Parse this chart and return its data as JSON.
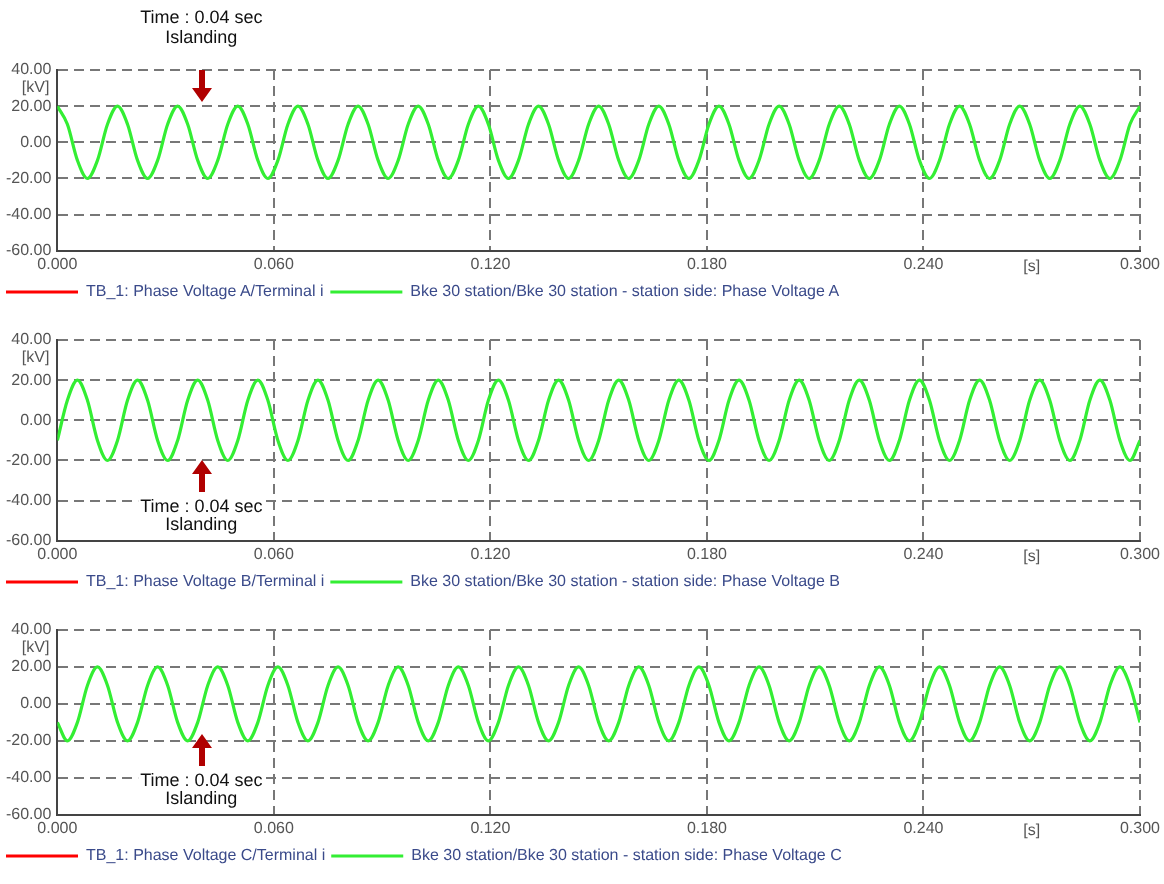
{
  "chart_data": [
    {
      "type": "line",
      "xlabel": "[s]",
      "ylabel": "[kV]",
      "legend": "bottom",
      "grid": true,
      "xlim": [
        0,
        0.3
      ],
      "ylim": [
        -60,
        40
      ],
      "xticks": [
        {
          "value": 0,
          "label": "0.000"
        },
        {
          "value": 0.06,
          "label": "0.060"
        },
        {
          "value": 0.12,
          "label": "0.120"
        },
        {
          "value": 0.18,
          "label": "0.180"
        },
        {
          "value": 0.24,
          "label": "0.240"
        },
        {
          "value": 0.3,
          "label": "0.300"
        }
      ],
      "yticks": [
        {
          "value": -60,
          "label": "-60.00"
        },
        {
          "value": -40,
          "label": "-40.00"
        },
        {
          "value": -20,
          "label": "-20.00"
        },
        {
          "value": 0,
          "label": "0.00"
        },
        {
          "value": 20,
          "label": "20.00"
        },
        {
          "value": 40,
          "label": "40.00"
        }
      ],
      "annotations": [
        "Time : 0.04 sec",
        "Islanding"
      ],
      "x": [
        0,
        0.00278,
        0.00556,
        0.00833,
        0.01111,
        0.01389,
        0.01667,
        0.01944,
        0.02222,
        0.025,
        0.02778,
        0.03056,
        0.03333,
        0.03611,
        0.03889,
        0.04167,
        0.04444,
        0.04722,
        0.05,
        0.05278,
        0.05556,
        0.05833,
        0.06111,
        0.06389,
        0.06667,
        0.06944,
        0.07222,
        0.075,
        0.07778,
        0.08056,
        0.08333,
        0.08611,
        0.08889,
        0.09167,
        0.09444,
        0.09722,
        0.1,
        0.10278,
        0.10556,
        0.10833,
        0.11111,
        0.11389,
        0.11667,
        0.11944,
        0.12222,
        0.125,
        0.12778,
        0.13056,
        0.13333,
        0.13611,
        0.13889,
        0.14167,
        0.14444,
        0.14722,
        0.15,
        0.15278,
        0.15556,
        0.15833,
        0.16111,
        0.16389,
        0.16667,
        0.16944,
        0.17222,
        0.175,
        0.17778,
        0.18056,
        0.18333,
        0.18611,
        0.18889,
        0.19167,
        0.19444,
        0.19722,
        0.2,
        0.20278,
        0.20556,
        0.20833,
        0.21111,
        0.21389,
        0.21667,
        0.21944,
        0.22222,
        0.225,
        0.22778,
        0.23056,
        0.23333,
        0.23611,
        0.23889,
        0.24167,
        0.24444,
        0.24722,
        0.25,
        0.25278,
        0.25556,
        0.25833,
        0.26111,
        0.26389,
        0.26667,
        0.26944,
        0.27222,
        0.275,
        0.27778,
        0.28056,
        0.28333,
        0.28611,
        0.28889,
        0.29167,
        0.29444,
        0.29722,
        0.3
      ],
      "series": [
        {
          "name": "TB_1: Phase Voltage A/Terminal i",
          "color": "#ff0000",
          "values": [
            null,
            null,
            null,
            null,
            null,
            null,
            null,
            null,
            null,
            null,
            null,
            null,
            null,
            null,
            null,
            null,
            null,
            null,
            null,
            null,
            null,
            null,
            null,
            null,
            null,
            null,
            null,
            null,
            null,
            null,
            null,
            null,
            null,
            null,
            null,
            null,
            null,
            null,
            null,
            null,
            null,
            null,
            null,
            null,
            null,
            null,
            null,
            null,
            null,
            null,
            null,
            null,
            null,
            null,
            null,
            null,
            null,
            null,
            null,
            null,
            null,
            null,
            null,
            null,
            null,
            null,
            null,
            null,
            null,
            null,
            null,
            null,
            null,
            null,
            null,
            null,
            null,
            null,
            null,
            null,
            null,
            null,
            null,
            null,
            null,
            null,
            null,
            null,
            null,
            null,
            null,
            null,
            null,
            null,
            null,
            null,
            null,
            null,
            null,
            null,
            null,
            null,
            null,
            null,
            null,
            null,
            null,
            null,
            null
          ]
        },
        {
          "name": "Bke 30 station/Bke 30 station - station side: Phase Voltage A",
          "color": "#33ee33",
          "values": [
            20,
            10,
            -10,
            -20,
            -10,
            10,
            20,
            10,
            -10,
            -20,
            -10,
            10,
            20,
            10,
            -10,
            -20,
            -10,
            10,
            20,
            10,
            -10,
            -20,
            -10,
            10,
            20,
            10,
            -10,
            -20,
            -10,
            10,
            20,
            10,
            -10,
            -20,
            -10,
            10,
            20,
            10,
            -10,
            -20,
            -10,
            10,
            20,
            10,
            -10,
            -20,
            -10,
            10,
            20,
            10,
            -10,
            -20,
            -10,
            10,
            20,
            10,
            -10,
            -20,
            -10,
            10,
            20,
            10,
            -10,
            -20,
            -10,
            10,
            20,
            10,
            -10,
            -20,
            -10,
            10,
            20,
            10,
            -10,
            -20,
            -10,
            10,
            20,
            10,
            -10,
            -20,
            -10,
            10,
            20,
            10,
            -10,
            -20,
            -10,
            10,
            20,
            10,
            -10,
            -20,
            -10,
            10,
            20,
            10,
            -10,
            -20,
            -10,
            10,
            20,
            10,
            -10,
            -20,
            -10,
            10,
            20
          ]
        }
      ]
    },
    {
      "type": "line",
      "xlabel": "[s]",
      "ylabel": "[kV]",
      "legend": "bottom",
      "grid": true,
      "xlim": [
        0,
        0.3
      ],
      "ylim": [
        -60,
        40
      ],
      "xticks": [
        {
          "value": 0,
          "label": "0.000"
        },
        {
          "value": 0.06,
          "label": "0.060"
        },
        {
          "value": 0.12,
          "label": "0.120"
        },
        {
          "value": 0.18,
          "label": "0.180"
        },
        {
          "value": 0.24,
          "label": "0.240"
        },
        {
          "value": 0.3,
          "label": "0.300"
        }
      ],
      "yticks": [
        {
          "value": -60,
          "label": "-60.00"
        },
        {
          "value": -40,
          "label": "-40.00"
        },
        {
          "value": -20,
          "label": "-20.00"
        },
        {
          "value": 0,
          "label": "0.00"
        },
        {
          "value": 20,
          "label": "20.00"
        },
        {
          "value": 40,
          "label": "40.00"
        }
      ],
      "annotations": [
        "Time : 0.04 sec",
        "Islanding"
      ],
      "x": [
        0,
        0.00278,
        0.00556,
        0.00833,
        0.01111,
        0.01389,
        0.01667,
        0.01944,
        0.02222,
        0.025,
        0.02778,
        0.03056,
        0.03333,
        0.03611,
        0.03889,
        0.04167,
        0.04444,
        0.04722,
        0.05,
        0.05278,
        0.05556,
        0.05833,
        0.06111,
        0.06389,
        0.06667,
        0.06944,
        0.07222,
        0.075,
        0.07778,
        0.08056,
        0.08333,
        0.08611,
        0.08889,
        0.09167,
        0.09444,
        0.09722,
        0.1,
        0.10278,
        0.10556,
        0.10833,
        0.11111,
        0.11389,
        0.11667,
        0.11944,
        0.12222,
        0.125,
        0.12778,
        0.13056,
        0.13333,
        0.13611,
        0.13889,
        0.14167,
        0.14444,
        0.14722,
        0.15,
        0.15278,
        0.15556,
        0.15833,
        0.16111,
        0.16389,
        0.16667,
        0.16944,
        0.17222,
        0.175,
        0.17778,
        0.18056,
        0.18333,
        0.18611,
        0.18889,
        0.19167,
        0.19444,
        0.19722,
        0.2,
        0.20278,
        0.20556,
        0.20833,
        0.21111,
        0.21389,
        0.21667,
        0.21944,
        0.22222,
        0.225,
        0.22778,
        0.23056,
        0.23333,
        0.23611,
        0.23889,
        0.24167,
        0.24444,
        0.24722,
        0.25,
        0.25278,
        0.25556,
        0.25833,
        0.26111,
        0.26389,
        0.26667,
        0.26944,
        0.27222,
        0.275,
        0.27778,
        0.28056,
        0.28333,
        0.28611,
        0.28889,
        0.29167,
        0.29444,
        0.29722,
        0.3
      ],
      "series": [
        {
          "name": "TB_1: Phase Voltage B/Terminal i",
          "color": "#ff0000",
          "values": [
            null,
            null,
            null,
            null,
            null,
            null,
            null,
            null,
            null,
            null,
            null,
            null,
            null,
            null,
            null,
            null,
            null,
            null,
            null,
            null,
            null,
            null,
            null,
            null,
            null,
            null,
            null,
            null,
            null,
            null,
            null,
            null,
            null,
            null,
            null,
            null,
            null,
            null,
            null,
            null,
            null,
            null,
            null,
            null,
            null,
            null,
            null,
            null,
            null,
            null,
            null,
            null,
            null,
            null,
            null,
            null,
            null,
            null,
            null,
            null,
            null,
            null,
            null,
            null,
            null,
            null,
            null,
            null,
            null,
            null,
            null,
            null,
            null,
            null,
            null,
            null,
            null,
            null,
            null,
            null,
            null,
            null,
            null,
            null,
            null,
            null,
            null,
            null,
            null,
            null,
            null,
            null,
            null,
            null,
            null,
            null,
            null,
            null,
            null,
            null,
            null,
            null,
            null,
            null,
            null,
            null,
            null,
            null,
            null
          ]
        },
        {
          "name": "Bke 30 station/Bke 30 station - station side: Phase Voltage B",
          "color": "#33ee33",
          "values": [
            -10,
            10,
            20,
            10,
            -10,
            -20,
            -10,
            10,
            20,
            10,
            -10,
            -20,
            -10,
            10,
            20,
            10,
            -10,
            -20,
            -10,
            10,
            20,
            10,
            -10,
            -20,
            -10,
            10,
            20,
            10,
            -10,
            -20,
            -10,
            10,
            20,
            10,
            -10,
            -20,
            -10,
            10,
            20,
            10,
            -10,
            -20,
            -10,
            10,
            20,
            10,
            -10,
            -20,
            -10,
            10,
            20,
            10,
            -10,
            -20,
            -10,
            10,
            20,
            10,
            -10,
            -20,
            -10,
            10,
            20,
            10,
            -10,
            -20,
            -10,
            10,
            20,
            10,
            -10,
            -20,
            -10,
            10,
            20,
            10,
            -10,
            -20,
            -10,
            10,
            20,
            10,
            -10,
            -20,
            -10,
            10,
            20,
            10,
            -10,
            -20,
            -10,
            10,
            20,
            10,
            -10,
            -20,
            -10,
            10,
            20,
            10,
            -10,
            -20,
            -10,
            10,
            20,
            10,
            -10,
            -20,
            -10
          ]
        }
      ]
    },
    {
      "type": "line",
      "xlabel": "[s]",
      "ylabel": "[kV]",
      "legend": "bottom",
      "grid": true,
      "xlim": [
        0,
        0.3
      ],
      "ylim": [
        -60,
        40
      ],
      "xticks": [
        {
          "value": 0,
          "label": "0.000"
        },
        {
          "value": 0.06,
          "label": "0.060"
        },
        {
          "value": 0.12,
          "label": "0.120"
        },
        {
          "value": 0.18,
          "label": "0.180"
        },
        {
          "value": 0.24,
          "label": "0.240"
        },
        {
          "value": 0.3,
          "label": "0.300"
        }
      ],
      "yticks": [
        {
          "value": -60,
          "label": "-60.00"
        },
        {
          "value": -40,
          "label": "-40.00"
        },
        {
          "value": -20,
          "label": "-20.00"
        },
        {
          "value": 0,
          "label": "0.00"
        },
        {
          "value": 20,
          "label": "20.00"
        },
        {
          "value": 40,
          "label": "40.00"
        }
      ],
      "annotations": [
        "Time : 0.04 sec",
        "Islanding"
      ],
      "x": [
        0,
        0.00278,
        0.00556,
        0.00833,
        0.01111,
        0.01389,
        0.01667,
        0.01944,
        0.02222,
        0.025,
        0.02778,
        0.03056,
        0.03333,
        0.03611,
        0.03889,
        0.04167,
        0.04444,
        0.04722,
        0.05,
        0.05278,
        0.05556,
        0.05833,
        0.06111,
        0.06389,
        0.06667,
        0.06944,
        0.07222,
        0.075,
        0.07778,
        0.08056,
        0.08333,
        0.08611,
        0.08889,
        0.09167,
        0.09444,
        0.09722,
        0.1,
        0.10278,
        0.10556,
        0.10833,
        0.11111,
        0.11389,
        0.11667,
        0.11944,
        0.12222,
        0.125,
        0.12778,
        0.13056,
        0.13333,
        0.13611,
        0.13889,
        0.14167,
        0.14444,
        0.14722,
        0.15,
        0.15278,
        0.15556,
        0.15833,
        0.16111,
        0.16389,
        0.16667,
        0.16944,
        0.17222,
        0.175,
        0.17778,
        0.18056,
        0.18333,
        0.18611,
        0.18889,
        0.19167,
        0.19444,
        0.19722,
        0.2,
        0.20278,
        0.20556,
        0.20833,
        0.21111,
        0.21389,
        0.21667,
        0.21944,
        0.22222,
        0.225,
        0.22778,
        0.23056,
        0.23333,
        0.23611,
        0.23889,
        0.24167,
        0.24444,
        0.24722,
        0.25,
        0.25278,
        0.25556,
        0.25833,
        0.26111,
        0.26389,
        0.26667,
        0.26944,
        0.27222,
        0.275,
        0.27778,
        0.28056,
        0.28333,
        0.28611,
        0.28889,
        0.29167,
        0.29444,
        0.29722,
        0.3
      ],
      "series": [
        {
          "name": "TB_1: Phase Voltage C/Terminal i",
          "color": "#ff0000",
          "values": [
            null,
            null,
            null,
            null,
            null,
            null,
            null,
            null,
            null,
            null,
            null,
            null,
            null,
            null,
            null,
            null,
            null,
            null,
            null,
            null,
            null,
            null,
            null,
            null,
            null,
            null,
            null,
            null,
            null,
            null,
            null,
            null,
            null,
            null,
            null,
            null,
            null,
            null,
            null,
            null,
            null,
            null,
            null,
            null,
            null,
            null,
            null,
            null,
            null,
            null,
            null,
            null,
            null,
            null,
            null,
            null,
            null,
            null,
            null,
            null,
            null,
            null,
            null,
            null,
            null,
            null,
            null,
            null,
            null,
            null,
            null,
            null,
            null,
            null,
            null,
            null,
            null,
            null,
            null,
            null,
            null,
            null,
            null,
            null,
            null,
            null,
            null,
            null,
            null,
            null,
            null,
            null,
            null,
            null,
            null,
            null,
            null,
            null,
            null,
            null,
            null,
            null,
            null,
            null,
            null,
            null,
            null,
            null,
            null
          ]
        },
        {
          "name": "Bke 30 station/Bke 30 station - station side: Phase Voltage C",
          "color": "#33ee33",
          "values": [
            -10,
            -20,
            -10,
            10,
            20,
            10,
            -10,
            -20,
            -10,
            10,
            20,
            10,
            -10,
            -20,
            -10,
            10,
            20,
            10,
            -10,
            -20,
            -10,
            10,
            20,
            10,
            -10,
            -20,
            -10,
            10,
            20,
            10,
            -10,
            -20,
            -10,
            10,
            20,
            10,
            -10,
            -20,
            -10,
            10,
            20,
            10,
            -10,
            -20,
            -10,
            10,
            20,
            10,
            -10,
            -20,
            -10,
            10,
            20,
            10,
            -10,
            -20,
            -10,
            10,
            20,
            10,
            -10,
            -20,
            -10,
            10,
            20,
            10,
            -10,
            -20,
            -10,
            10,
            20,
            10,
            -10,
            -20,
            -10,
            10,
            20,
            10,
            -10,
            -20,
            -10,
            10,
            20,
            10,
            -10,
            -20,
            -10,
            10,
            20,
            10,
            -10,
            -20,
            -10,
            10,
            20,
            10,
            -10,
            -20,
            -10,
            10,
            20,
            10,
            -10,
            -20,
            -10,
            10,
            20,
            10,
            -10
          ]
        }
      ]
    }
  ]
}
